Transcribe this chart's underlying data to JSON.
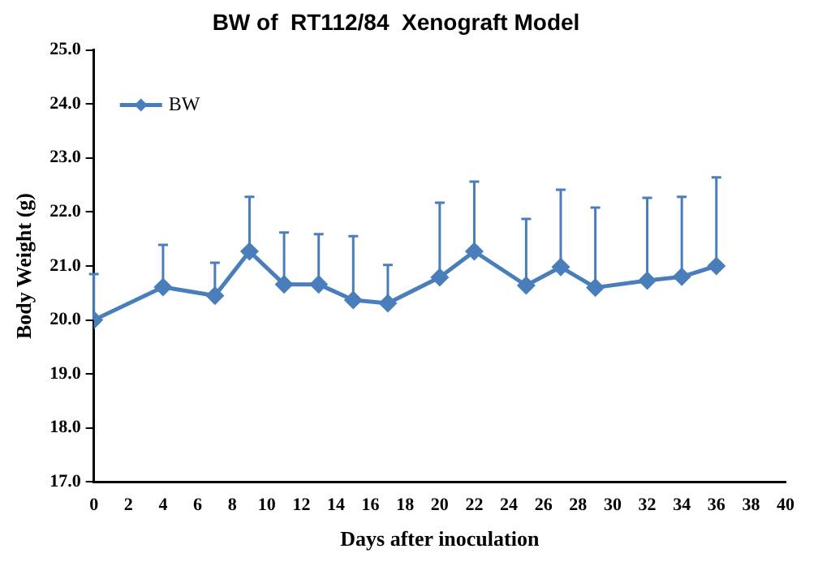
{
  "chart_data": {
    "type": "line",
    "title": "BW of  RT112/84  Xenograft Model",
    "xlabel": "Days after inoculation",
    "ylabel": "Body Weight (g)",
    "x": [
      0,
      4,
      7,
      9,
      11,
      13,
      15,
      17,
      20,
      22,
      25,
      27,
      29,
      32,
      34,
      36
    ],
    "series": [
      {
        "name": "BW",
        "color": "#4a7ebb",
        "values": [
          20.0,
          20.61,
          20.45,
          21.27,
          20.66,
          20.66,
          20.37,
          20.31,
          20.79,
          21.27,
          20.64,
          20.98,
          20.6,
          20.73,
          20.8,
          21.0
        ],
        "errors": [
          [
            20.0,
            20.85
          ],
          [
            20.61,
            21.39
          ],
          [
            20.45,
            21.06
          ],
          [
            21.27,
            22.28
          ],
          [
            20.66,
            21.62
          ],
          [
            20.66,
            21.59
          ],
          [
            20.37,
            21.55
          ],
          [
            20.31,
            21.02
          ],
          [
            20.79,
            22.17
          ],
          [
            21.27,
            22.56
          ],
          [
            20.64,
            21.87
          ],
          [
            20.98,
            22.41
          ],
          [
            20.6,
            22.08
          ],
          [
            20.73,
            22.26
          ],
          [
            20.8,
            22.28
          ],
          [
            21.0,
            22.64
          ]
        ]
      }
    ],
    "xlim": [
      0,
      40
    ],
    "xticks": [
      0,
      2,
      4,
      6,
      8,
      10,
      12,
      14,
      16,
      18,
      20,
      22,
      24,
      26,
      28,
      30,
      32,
      34,
      36,
      38,
      40
    ],
    "ylim": [
      17,
      25
    ],
    "yticks": [
      {
        "value": 17,
        "label": "17.0"
      },
      {
        "value": 18,
        "label": "18.0"
      },
      {
        "value": 19,
        "label": "19.0"
      },
      {
        "value": 20,
        "label": "20.0"
      },
      {
        "value": 21,
        "label": "21.0"
      },
      {
        "value": 22,
        "label": "22.0"
      },
      {
        "value": 23,
        "label": "23.0"
      },
      {
        "value": 24,
        "label": "24.0"
      },
      {
        "value": 25,
        "label": "25.0"
      }
    ],
    "grid": false,
    "legend": "top left",
    "marker": "diamond",
    "line_style": "solid"
  }
}
